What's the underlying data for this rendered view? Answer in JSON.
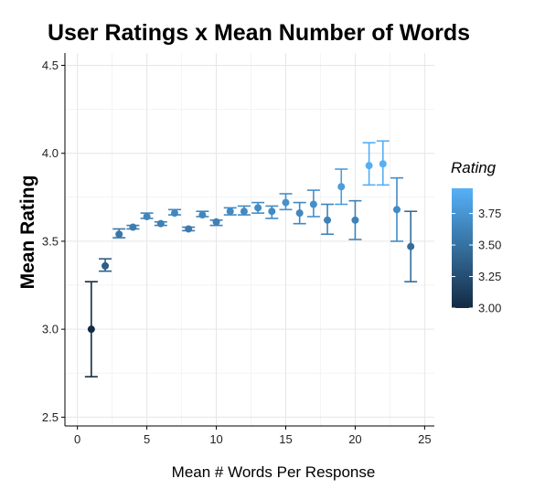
{
  "chart_data": {
    "type": "scatter",
    "title": "User Ratings x Mean Number of Words",
    "xlabel": "Mean # Words Per Response",
    "ylabel": "Mean Rating",
    "xlim": [
      -0.9,
      25.7
    ],
    "ylim": [
      2.45,
      4.57
    ],
    "x_ticks": [
      0,
      5,
      10,
      15,
      20,
      25
    ],
    "y_ticks": [
      2.5,
      3.0,
      3.5,
      4.0,
      4.5
    ],
    "x_tick_labels": [
      "0",
      "5",
      "10",
      "15",
      "20",
      "25"
    ],
    "y_tick_labels": [
      "2.5",
      "3.0",
      "3.5",
      "4.0",
      "4.5"
    ],
    "grid": true,
    "error_bars": true,
    "color_scale": {
      "title": "Rating",
      "min": 3.0,
      "max": 3.95,
      "low_color": "#132B43",
      "high_color": "#56B1F7",
      "ticks": [
        3.0,
        3.25,
        3.5,
        3.75
      ],
      "tick_labels": [
        "3.00",
        "3.25",
        "3.50",
        "3.75"
      ]
    },
    "points": [
      {
        "x": 1,
        "y": 3.0,
        "ymin": 2.73,
        "ymax": 3.27
      },
      {
        "x": 2,
        "y": 3.36,
        "ymin": 3.33,
        "ymax": 3.4
      },
      {
        "x": 3,
        "y": 3.54,
        "ymin": 3.52,
        "ymax": 3.57
      },
      {
        "x": 4,
        "y": 3.58,
        "ymin": 3.57,
        "ymax": 3.59
      },
      {
        "x": 5,
        "y": 3.64,
        "ymin": 3.63,
        "ymax": 3.66
      },
      {
        "x": 6,
        "y": 3.6,
        "ymin": 3.59,
        "ymax": 3.61
      },
      {
        "x": 7,
        "y": 3.66,
        "ymin": 3.65,
        "ymax": 3.68
      },
      {
        "x": 8,
        "y": 3.57,
        "ymin": 3.56,
        "ymax": 3.58
      },
      {
        "x": 9,
        "y": 3.65,
        "ymin": 3.64,
        "ymax": 3.67
      },
      {
        "x": 10,
        "y": 3.61,
        "ymin": 3.59,
        "ymax": 3.62
      },
      {
        "x": 11,
        "y": 3.67,
        "ymin": 3.65,
        "ymax": 3.69
      },
      {
        "x": 12,
        "y": 3.67,
        "ymin": 3.65,
        "ymax": 3.7
      },
      {
        "x": 13,
        "y": 3.69,
        "ymin": 3.66,
        "ymax": 3.72
      },
      {
        "x": 14,
        "y": 3.67,
        "ymin": 3.63,
        "ymax": 3.7
      },
      {
        "x": 15,
        "y": 3.72,
        "ymin": 3.68,
        "ymax": 3.77
      },
      {
        "x": 16,
        "y": 3.66,
        "ymin": 3.6,
        "ymax": 3.72
      },
      {
        "x": 17,
        "y": 3.71,
        "ymin": 3.64,
        "ymax": 3.79
      },
      {
        "x": 18,
        "y": 3.62,
        "ymin": 3.54,
        "ymax": 3.71
      },
      {
        "x": 19,
        "y": 3.81,
        "ymin": 3.71,
        "ymax": 3.91
      },
      {
        "x": 20,
        "y": 3.62,
        "ymin": 3.51,
        "ymax": 3.73
      },
      {
        "x": 21,
        "y": 3.93,
        "ymin": 3.82,
        "ymax": 4.06
      },
      {
        "x": 22,
        "y": 3.94,
        "ymin": 3.82,
        "ymax": 4.07
      },
      {
        "x": 23,
        "y": 3.68,
        "ymin": 3.5,
        "ymax": 3.86
      },
      {
        "x": 24,
        "y": 3.47,
        "ymin": 3.27,
        "ymax": 3.67
      }
    ]
  }
}
